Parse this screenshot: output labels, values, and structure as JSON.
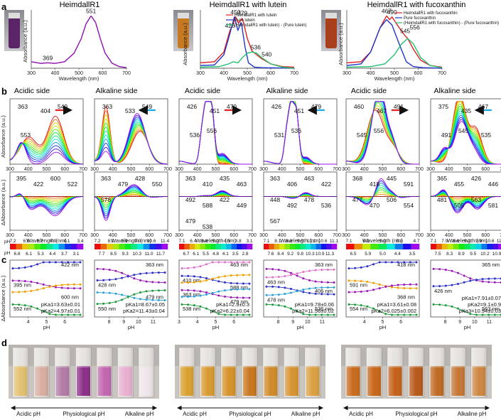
{
  "panel_labels": [
    "a",
    "b",
    "c",
    "d"
  ],
  "column_titles": [
    "HeimdallR1",
    "HeimdallR1 with lutein",
    "HeimdallR1 with fucoxanthin"
  ],
  "side_labels": [
    "Acidic side",
    "Alkaline side"
  ],
  "axis_text": {
    "wavelength": "Wavelength (nm)",
    "absorbance": "Absorbance (a.u.)",
    "abs_short": "Absorbance (a.u.)",
    "delta_abs": "ΔAbsorbance (a.u.)",
    "ph": "pH",
    "ph_bar": "pH"
  },
  "legends": {
    "lutein": [
      "HeimdallR1 with lutein",
      "Pure lutein",
      "(HeimdallR1 with lutein) - (Pure lutein)"
    ],
    "fucoxanthin": [
      "HeimdallR1 with fucoxanthin",
      "Pure fucoxanthin",
      "(HeimdallR1 with fucoxanthin) - (Pure fucoxanthin)"
    ]
  },
  "colors": {
    "heimdall": "#8e10b0",
    "complex": "#e32020",
    "pure": "#2036c8",
    "diff": "#24c070",
    "purple_fit": "#9a19b8",
    "blue_fit": "#2b2fc8",
    "orange_fit": "#f0a000",
    "green_fit": "#1a9a3a",
    "pink_fit": "#e070c8"
  },
  "chart_data": [
    {
      "id": "a1",
      "type": "line",
      "title": "HeimdallR1",
      "xlabel": "Wavelength (nm)",
      "ylabel": "Absorbance (a.u.)",
      "xlim": [
        300,
        700
      ],
      "xticks": [
        300,
        400,
        500,
        600,
        700
      ],
      "series": [
        {
          "name": "HeimdallR1",
          "x": [
            300,
            340,
            369,
            400,
            440,
            480,
            510,
            530,
            551,
            570,
            590,
            610,
            640,
            670,
            700
          ],
          "y": [
            0.12,
            0.09,
            0.1,
            0.09,
            0.12,
            0.28,
            0.55,
            0.82,
            0.97,
            0.85,
            0.55,
            0.28,
            0.09,
            0.03,
            0.01
          ]
        }
      ],
      "peak_labels": [
        {
          "x": 369,
          "text": "369"
        },
        {
          "x": 551,
          "text": "551"
        }
      ]
    },
    {
      "id": "a2",
      "type": "line",
      "title": "HeimdallR1 with lutein",
      "xlabel": "Wavelength (nm)",
      "ylabel": "Absorbance (a.u.)",
      "xlim": [
        300,
        700
      ],
      "xticks": [
        300,
        400,
        500,
        600,
        700
      ],
      "series": [
        {
          "name": "HeimdallR1 with lutein",
          "x": [
            300,
            360,
            400,
            426,
            440,
            450,
            462,
            479,
            500,
            520,
            540,
            560,
            600,
            650,
            700
          ],
          "y": [
            0.1,
            0.12,
            0.3,
            0.7,
            0.82,
            0.95,
            0.83,
            0.93,
            0.55,
            0.32,
            0.25,
            0.18,
            0.08,
            0.03,
            0.02
          ]
        },
        {
          "name": "Pure lutein",
          "x": [
            300,
            360,
            400,
            420,
            445,
            460,
            474,
            490,
            505,
            530,
            560,
            700
          ],
          "y": [
            0.05,
            0.06,
            0.25,
            0.55,
            0.95,
            0.7,
            0.86,
            0.4,
            0.1,
            0.02,
            0.01,
            0.0
          ]
        },
        {
          "name": "(HeimdallR1 with lutein) - (Pure lutein)",
          "x": [
            300,
            380,
            420,
            440,
            460,
            480,
            500,
            520,
            540,
            560,
            600,
            650,
            700
          ],
          "y": [
            0.02,
            0.03,
            0.08,
            0.12,
            0.1,
            0.2,
            0.28,
            0.3,
            0.28,
            0.2,
            0.08,
            0.02,
            0.0
          ]
        }
      ],
      "peak_labels": [
        {
          "x": 426,
          "text": "426"
        },
        {
          "x": 450,
          "text": "450"
        },
        {
          "x": 479,
          "text": "479"
        },
        {
          "x": 536,
          "text": "536"
        },
        {
          "x": 540,
          "text": "540"
        }
      ]
    },
    {
      "id": "a3",
      "type": "line",
      "title": "HeimdallR1 with fucoxanthin",
      "xlabel": "Wavelength (nm)",
      "ylabel": "Absorbance (a.u.)",
      "xlim": [
        300,
        700
      ],
      "xticks": [
        300,
        400,
        500,
        600,
        700
      ],
      "series": [
        {
          "name": "HeimdallR1 with fucoxanthin",
          "x": [
            300,
            360,
            400,
            440,
            467,
            480,
            490,
            520,
            545,
            556,
            580,
            610,
            650,
            700
          ],
          "y": [
            0.1,
            0.12,
            0.3,
            0.75,
            0.97,
            0.9,
            0.95,
            0.75,
            0.6,
            0.55,
            0.35,
            0.15,
            0.05,
            0.02
          ]
        },
        {
          "name": "Pure fucoxanthin",
          "x": [
            300,
            360,
            400,
            440,
            467,
            490,
            520,
            550,
            580,
            620,
            700
          ],
          "y": [
            0.05,
            0.08,
            0.3,
            0.75,
            0.9,
            0.8,
            0.45,
            0.12,
            0.03,
            0.01,
            0.0
          ]
        },
        {
          "name": "(HeimdallR1 with fucoxanthin) - (Pure fucoxanthin)",
          "x": [
            300,
            400,
            460,
            500,
            530,
            556,
            580,
            610,
            650,
            700
          ],
          "y": [
            0.02,
            0.03,
            0.08,
            0.25,
            0.45,
            0.55,
            0.45,
            0.2,
            0.05,
            0.01
          ]
        }
      ],
      "peak_labels": [
        {
          "x": 467,
          "text": "467"
        },
        {
          "x": 490,
          "text": "490"
        },
        {
          "x": 545,
          "text": "545"
        },
        {
          "x": 556,
          "text": "556"
        }
      ]
    },
    {
      "id": "b_spectra",
      "type": "line",
      "description_x": "Wavelength (nm)",
      "xlim": [
        300,
        700
      ],
      "xticks": [
        300,
        400,
        500,
        600,
        700
      ],
      "panels": [
        {
          "side": "Acidic side",
          "peaks": [
            "363",
            "404",
            "549",
            "553"
          ],
          "diff_peaks": [
            "395",
            "422",
            "600",
            "522"
          ],
          "ph": [
            7.2,
            6.8,
            6.5,
            6.1,
            5.7,
            5.3,
            4.9,
            4.4,
            4.1,
            3.7,
            3.4,
            3.1
          ],
          "ph_labels_top": [
            "7.2",
            "6.5",
            "5.7",
            "4.9",
            "4.1",
            "3.4"
          ],
          "ph_labels_bottom": [
            "6.8",
            "6.1",
            "5.3",
            "4.4",
            "3.7",
            "3.1"
          ]
        },
        {
          "side": "Alkaline side",
          "peaks": [
            "363",
            "533",
            "549"
          ],
          "diff_peaks": [
            "363",
            "479",
            "428",
            "550",
            "578"
          ],
          "ph": [
            7.2,
            7.7,
            8.1,
            8.5,
            8.9,
            9.3,
            9.9,
            10.3,
            10.6,
            11.0,
            11.4,
            11.7
          ],
          "ph_labels_top": [
            "7.2",
            "8.1",
            "8.9",
            "9.9",
            "10.6",
            "11.4"
          ],
          "ph_labels_bottom": [
            "7.7",
            "8.5",
            "9.3",
            "10.3",
            "11.0",
            "11.7"
          ]
        },
        {
          "side": "Acidic side",
          "peaks": [
            "426",
            "451",
            "479",
            "536",
            "556"
          ],
          "diff_peaks": [
            "363",
            "410",
            "435",
            "463",
            "492",
            "588",
            "422",
            "449",
            "479",
            "538"
          ],
          "ph": [
            7.1,
            6.7,
            6.4,
            6.1,
            5.8,
            5.5,
            5.2,
            4.8,
            4.5,
            4.1,
            3.8,
            3.5,
            3.1,
            2.8
          ],
          "ph_labels_top": [
            "7.1",
            "6.4",
            "5.8",
            "5.2",
            "4.5",
            "3.8",
            "3.1"
          ],
          "ph_labels_bottom": [
            "6.7",
            "6.1",
            "5.5",
            "4.8",
            "4.1",
            "3.5",
            "2.8"
          ]
        },
        {
          "side": "Alkaline side",
          "peaks": [
            "426",
            "451",
            "479",
            "531",
            "536"
          ],
          "diff_peaks": [
            "363",
            "406",
            "463",
            "422",
            "448",
            "492",
            "478",
            "536",
            "567"
          ],
          "ph": [
            7.1,
            7.6,
            8.1,
            8.4,
            8.8,
            9.2,
            9.5,
            9.8,
            10.1,
            10.3,
            10.6,
            10.9,
            11.1,
            11.3
          ],
          "ph_labels_top": [
            "7.1",
            "8.1",
            "8.8",
            "9.5",
            "10.1",
            "10.6",
            "11.1"
          ],
          "ph_labels_bottom": [
            "7.6",
            "8.4",
            "9.2",
            "9.8",
            "10.3",
            "10.9",
            "11.3"
          ]
        },
        {
          "side": "Acidic side",
          "peaks": [
            "460",
            "467",
            "491",
            "545",
            "556"
          ],
          "diff_peaks": [
            "368",
            "418",
            "445",
            "591",
            "477",
            "470",
            "506",
            "554"
          ],
          "ph": [
            7.1,
            6.5,
            5.9,
            5.3,
            5.0,
            4.7,
            4.4,
            4.0,
            3.5
          ],
          "ph_labels_top": [
            "7.1",
            "6.5",
            "5.9",
            "5.3",
            "4.7"
          ],
          "ph_labels_bottom": [
            "6.5",
            "5.9",
            "5.0",
            "4.4",
            "3.5"
          ]
        },
        {
          "side": "Alkaline side",
          "peaks": [
            "375",
            "435",
            "467",
            "491",
            "545",
            "535"
          ],
          "diff_peaks": [
            "365",
            "455",
            "426",
            "446",
            "481",
            "505",
            "563",
            "581"
          ],
          "ph": [
            7.1,
            7.5,
            7.9,
            8.3,
            8.6,
            8.9,
            9.2,
            9.5,
            9.9,
            10.2,
            10.6,
            10.9,
            11.3
          ],
          "ph_labels_top": [
            "7.1",
            "7.9",
            "8.6",
            "9.2",
            "9.9",
            "10.6",
            "11.3"
          ],
          "ph_labels_bottom": [
            "7.5",
            "8.3",
            "8.9",
            "9.5",
            "10.2",
            "10.9"
          ]
        }
      ]
    },
    {
      "id": "c_titration",
      "type": "scatter",
      "xlabel": "pH",
      "ylabel": "ΔAbsorbance (a.u.)",
      "panels": [
        {
          "xlim": [
            3,
            7
          ],
          "xticks": [
            4,
            5,
            6
          ],
          "series": [
            {
              "name": "422 nm",
              "color": "#2b2fc8"
            },
            {
              "name": "395 nm",
              "color": "#9a19b8"
            },
            {
              "name": "600 nm",
              "color": "#f0a000"
            },
            {
              "name": "552 nm",
              "color": "#1a9a3a"
            }
          ],
          "pka": [
            "pKa1=3.63±0.01",
            "pKa2=4.97±0.01"
          ]
        },
        {
          "xlim": [
            7,
            12
          ],
          "xticks": [
            8,
            9,
            10,
            11
          ],
          "series": [
            {
              "name": "363 nm",
              "color": "#9a19b8"
            },
            {
              "name": "428 nm",
              "color": "#2b2fc8"
            },
            {
              "name": "479 nm",
              "color": "#2aa0d8"
            },
            {
              "name": "550 nm",
              "color": "#1a9a3a"
            }
          ],
          "pka": [
            "pKa1=8.67±0.05",
            "pKa2=11.43±0.04"
          ]
        },
        {
          "xlim": [
            3,
            7
          ],
          "xticks": [
            3,
            4,
            5,
            6
          ],
          "series": [
            {
              "name": "463 nm",
              "color": "#e070c8"
            },
            {
              "name": "410 nm",
              "color": "#2b2fc8"
            },
            {
              "name": "588 nm",
              "color": "#f0a000"
            },
            {
              "name": "363 nm",
              "color": "#9a19b8"
            },
            {
              "name": "479 nm",
              "color": "#2aa0d8"
            },
            {
              "name": "538 nm",
              "color": "#1a9a3a"
            }
          ],
          "pka": [
            "pKa1=2.9±0.3",
            "pKa2=6.22±0.04"
          ]
        },
        {
          "xlim": [
            7,
            12
          ],
          "xticks": [
            8,
            9,
            10,
            11
          ],
          "series": [
            {
              "name": "363 nm",
              "color": "#9a19b8"
            },
            {
              "name": "463 nm",
              "color": "#e070c8"
            },
            {
              "name": "406 nm",
              "color": "#2b2fc8"
            },
            {
              "name": "478 nm",
              "color": "#2aa0d8"
            },
            {
              "name": "536 nm",
              "color": "#1a9a3a"
            }
          ],
          "pka": [
            "pKa1=9.78±0.06",
            "pKa2=11.56±0.02"
          ]
        },
        {
          "xlim": [
            3,
            7
          ],
          "xticks": [
            4,
            5,
            6
          ],
          "series": [
            {
              "name": "418 nm",
              "color": "#2b2fc8"
            },
            {
              "name": "591 nm",
              "color": "#f0a000"
            },
            {
              "name": "368 nm",
              "color": "#9a19b8"
            },
            {
              "name": "554 nm",
              "color": "#1a9a3a"
            }
          ],
          "pka": [
            "pKa1=3.61±0.08",
            "pKa2=6.025±0.002"
          ]
        },
        {
          "xlim": [
            7,
            12
          ],
          "xticks": [
            8,
            9,
            10,
            11
          ],
          "series": [
            {
              "name": "365 nm",
              "color": "#9a19b8"
            },
            {
              "name": "426 nm",
              "color": "#2b2fc8"
            },
            {
              "name": "563 nm",
              "color": "#1a9a3a"
            }
          ],
          "pka": [
            "pKa1=7.91±0.07",
            "pKa2=9.1±0.9",
            "pKa3=10.94±0.03"
          ]
        }
      ]
    }
  ],
  "cuvettes": {
    "groups": [
      {
        "name": "HeimdallR1",
        "colors": [
          "#e2c070",
          "#d8aea0",
          "#b27aa6",
          "#8c2e88",
          "#c266b0",
          "#e8b0d0",
          "#efe6ea"
        ]
      },
      {
        "name": "HeimdallR1 with lutein",
        "colors": [
          "#d9a030",
          "#d89a30",
          "#d69228",
          "#c8761c",
          "#d08a28",
          "#d69430",
          "#dba040"
        ]
      },
      {
        "name": "HeimdallR1 with fucoxanthin",
        "colors": [
          "#c86a1c",
          "#c86618",
          "#c46018",
          "#b85818",
          "#bf6a22",
          "#c57634",
          "#cc8640"
        ]
      }
    ],
    "arrow_labels": [
      "Acidic pH",
      "Physiological pH",
      "Alkaline pH"
    ]
  }
}
